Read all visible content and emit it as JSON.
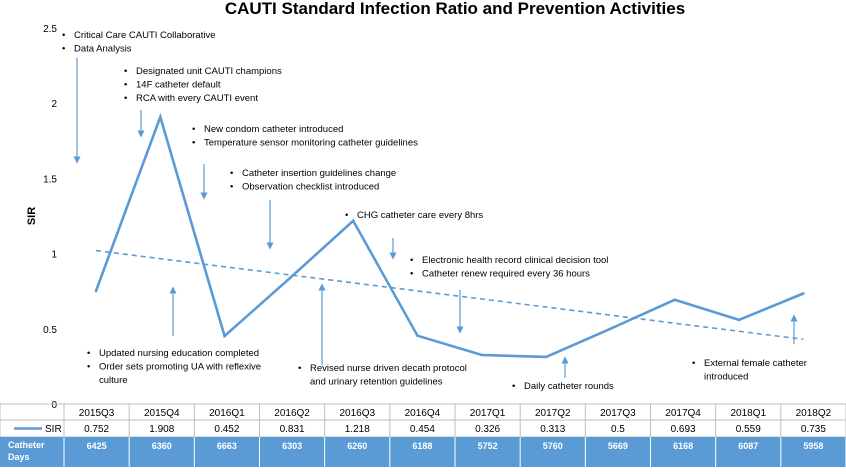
{
  "chart_data": {
    "type": "line",
    "title": "CAUTI Standard Infection Ratio and Prevention Activities",
    "ylabel": "SIR",
    "ylim": [
      0,
      2.5
    ],
    "yticks": [
      "0",
      "0.5",
      "1",
      "1.5",
      "2",
      "2.5"
    ],
    "categories": [
      "2015Q3",
      "2015Q4",
      "2016Q1",
      "2016Q2",
      "2016Q3",
      "2016Q4",
      "2017Q1",
      "2017Q2",
      "2017Q3",
      "2017Q4",
      "2018Q1",
      "2018Q2"
    ],
    "series": [
      {
        "name": "SIR",
        "values": [
          0.752,
          1.908,
          0.452,
          0.831,
          1.218,
          0.454,
          0.326,
          0.313,
          0.5,
          0.693,
          0.559,
          0.735
        ],
        "labels": [
          "0.752",
          "1.908",
          "0.452",
          "0.831",
          "1.218",
          "0.454",
          "0.326",
          "0.313",
          "0.5",
          "0.693",
          "0.559",
          "0.735"
        ],
        "color": "#5b9bd5"
      }
    ],
    "trendline": {
      "style": "dashed",
      "start_value": 1.02,
      "end_value": 0.43,
      "color": "#5b9bd5"
    },
    "table": {
      "rows": [
        {
          "label": "SIR",
          "legend_key": true
        },
        {
          "label_lines": [
            "Catheter",
            "Days"
          ],
          "values": [
            "6425",
            "6360",
            "6663",
            "6303",
            "6260",
            "6188",
            "5752",
            "5760",
            "5669",
            "6168",
            "6087",
            "5958"
          ],
          "background": "#5b9bd5"
        }
      ]
    },
    "annotations": [
      {
        "id": "ann-collaborative",
        "lines": [
          "Critical Care CAUTI Collaborative",
          "Data Analysis"
        ],
        "arrow": "down",
        "arrow_at_category": "2015Q3"
      },
      {
        "id": "ann-champions",
        "lines": [
          "Designated unit CAUTI champions",
          "14F catheter default",
          "RCA with every CAUTI event"
        ],
        "arrow": "down",
        "arrow_at_category": "2015Q4"
      },
      {
        "id": "ann-condom",
        "lines": [
          "New condom catheter introduced",
          "Temperature sensor monitoring catheter guidelines"
        ],
        "arrow": "down",
        "arrow_at_category": "2016Q1"
      },
      {
        "id": "ann-insertion",
        "lines": [
          "Catheter insertion guidelines change",
          "Observation checklist introduced"
        ],
        "arrow": "down",
        "arrow_at_category": "2016Q2"
      },
      {
        "id": "ann-chg",
        "lines": [
          "CHG catheter care every 8hrs"
        ],
        "arrow": "down",
        "arrow_at_category": "2016Q4"
      },
      {
        "id": "ann-ehr",
        "lines": [
          "Electronic health record clinical decision tool",
          "Catheter renew required every 36 hours"
        ],
        "arrow": "down",
        "arrow_at_category": "2017Q1"
      },
      {
        "id": "ann-education",
        "lines": [
          "Updated nursing education completed",
          "Order sets promoting UA with reflexive",
          "culture"
        ],
        "arrow": "up",
        "arrow_at_category": "2015Q4"
      },
      {
        "id": "ann-decath",
        "lines": [
          "Revised nurse driven decath protocol",
          "and urinary retention guidelines"
        ],
        "arrow": "up",
        "arrow_at_category": "2016Q3"
      },
      {
        "id": "ann-rounds",
        "lines": [
          "Daily catheter rounds"
        ],
        "arrow": "up",
        "arrow_at_category": "2017Q2"
      },
      {
        "id": "ann-female",
        "lines": [
          "External female catheter",
          "introduced"
        ],
        "arrow": "up",
        "arrow_at_category": "2018Q2"
      }
    ]
  }
}
